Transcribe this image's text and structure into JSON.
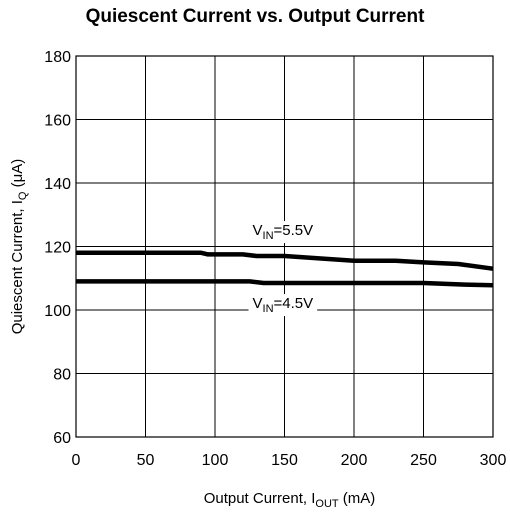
{
  "chart_data": {
    "type": "line",
    "title": "Quiescent Current vs. Output Current",
    "xlabel": {
      "main": "Output Current, I",
      "sub": "OUT",
      "unit": " (mA)"
    },
    "ylabel": {
      "main": "Quiescent Current, I",
      "sub": "Q",
      "unit": " (μA)"
    },
    "xlim": [
      0,
      300
    ],
    "ylim": [
      60,
      180
    ],
    "xticks": [
      0,
      50,
      100,
      150,
      200,
      250,
      300
    ],
    "yticks": [
      60,
      80,
      100,
      120,
      140,
      160,
      180
    ],
    "grid": true,
    "series": [
      {
        "name": "VIN=5.5V",
        "label": {
          "v": "V",
          "sub": "IN",
          "rest": "=5.5V"
        },
        "x": [
          0,
          50,
          90,
          95,
          120,
          130,
          150,
          200,
          230,
          250,
          275,
          300
        ],
        "y": [
          118,
          118,
          118,
          117.5,
          117.5,
          117,
          117,
          115.5,
          115.5,
          115,
          114.5,
          113
        ]
      },
      {
        "name": "VIN=4.5V",
        "label": {
          "v": "V",
          "sub": "IN",
          "rest": "=4.5V"
        },
        "x": [
          0,
          50,
          100,
          125,
          135,
          150,
          200,
          250,
          280,
          300
        ],
        "y": [
          109,
          109,
          109,
          109,
          108.5,
          108.5,
          108.5,
          108.5,
          108,
          107.8
        ]
      }
    ]
  }
}
